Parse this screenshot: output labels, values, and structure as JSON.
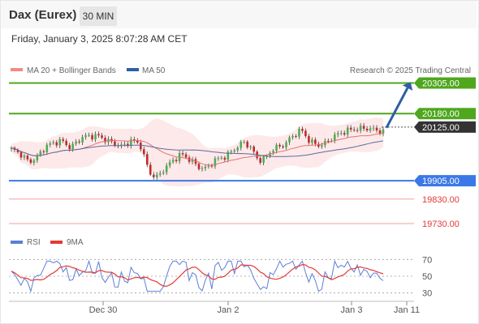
{
  "header": {
    "title": "Dax (Eurex)",
    "timeframe": "30 MIN"
  },
  "datetime": "Friday, January 3, 2025 8:07:28 AM CET",
  "credit": "Research © 2025 Trading Central",
  "legend": {
    "ma20": "MA 20 + Bollinger Bands",
    "ma50": "MA 50",
    "rsi": "RSI",
    "ma9": "9MA"
  },
  "colors": {
    "resistance": "#4fa71d",
    "support": "#3b78e7",
    "minor_support": "#e53935",
    "arrow": "#2e5fa3",
    "candle_up": "#4caf50",
    "candle_down": "#c62828",
    "ma20": "#e57373",
    "ma50": "#5c6b9c",
    "bands": "#fde4e4",
    "rsi": "#5b7fd6",
    "ma9": "#e53935"
  },
  "chart_data": [
    {
      "type": "candlestick",
      "x_ticks": [
        "Dec 30",
        "Jan 2",
        "Jan 3",
        "Jan 11"
      ],
      "price_range": [
        19690,
        20340
      ],
      "levels": [
        {
          "label": "20305.00",
          "value": 20305,
          "kind": "resistance"
        },
        {
          "label": "20180.00",
          "value": 20180,
          "kind": "resistance"
        },
        {
          "label": "20125.00",
          "value": 20125,
          "kind": "last"
        },
        {
          "label": "19905.00",
          "value": 19905,
          "kind": "support"
        },
        {
          "label": "19830.00",
          "value": 19830,
          "kind": "minor"
        },
        {
          "label": "19730.00",
          "value": 19730,
          "kind": "minor"
        }
      ],
      "projection": {
        "from": 20125,
        "to": 20305
      },
      "series": [
        {
          "name": "MA 20 + Bollinger Bands"
        },
        {
          "name": "MA 50"
        }
      ]
    },
    {
      "type": "line",
      "y_ticks": [
        70,
        50,
        30
      ],
      "y_range": [
        20,
        80
      ],
      "series": [
        {
          "name": "RSI"
        },
        {
          "name": "9MA"
        }
      ]
    }
  ]
}
